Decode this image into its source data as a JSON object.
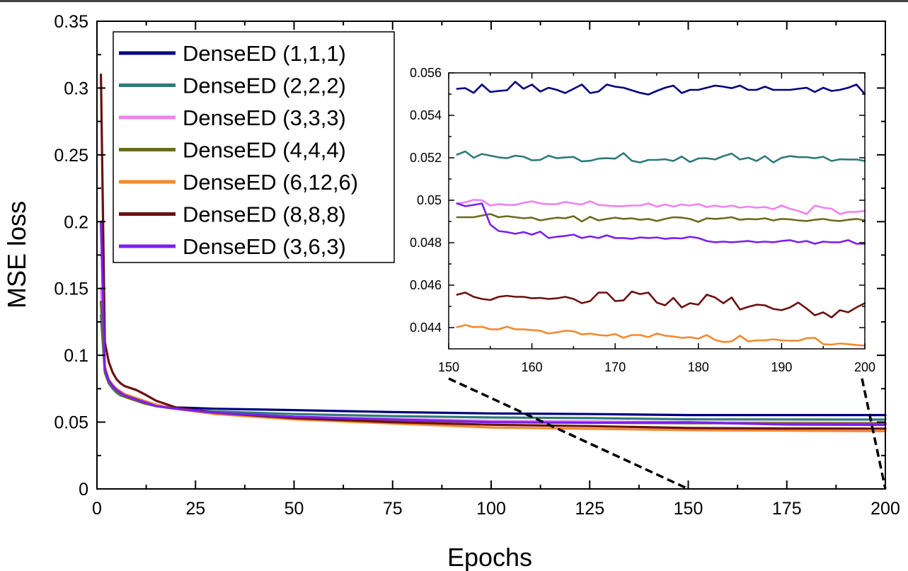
{
  "chart_data": [
    {
      "type": "line",
      "title": "",
      "xlabel": "Epochs",
      "ylabel": "MSE loss",
      "xlim": [
        0,
        200
      ],
      "ylim": [
        0,
        0.35
      ],
      "xticks": [
        0,
        25,
        50,
        75,
        100,
        125,
        150,
        175,
        200
      ],
      "yticks": [
        0,
        0.05,
        0.1,
        0.15,
        0.2,
        0.25,
        0.3,
        0.35
      ],
      "xtick_labels": [
        "0",
        "25",
        "50",
        "75",
        "100",
        "125",
        "150",
        "175",
        "200"
      ],
      "ytick_labels": [
        "0",
        "0.05",
        "0.1",
        "0.15",
        "0.2",
        "0.25",
        "0.3",
        "0.35"
      ],
      "legend_position": "top-left",
      "x": [
        1,
        2,
        3,
        4,
        5,
        6,
        7,
        8,
        10,
        12,
        15,
        20,
        25,
        30,
        40,
        50,
        75,
        100,
        125,
        150,
        175,
        200
      ],
      "series": [
        {
          "name": "DenseED (1,1,1)",
          "color": "#000080",
          "values": [
            0.14,
            0.088,
            0.08,
            0.076,
            0.073,
            0.071,
            0.069,
            0.068,
            0.066,
            0.064,
            0.062,
            0.061,
            0.0605,
            0.06,
            0.0595,
            0.059,
            0.0575,
            0.0565,
            0.056,
            0.0553,
            0.0553,
            0.0553
          ]
        },
        {
          "name": "DenseED (2,2,2)",
          "color": "#2F7A7A",
          "values": [
            0.13,
            0.087,
            0.079,
            0.075,
            0.072,
            0.07,
            0.069,
            0.068,
            0.066,
            0.064,
            0.062,
            0.06,
            0.059,
            0.058,
            0.057,
            0.056,
            0.0545,
            0.0535,
            0.053,
            0.0521,
            0.052,
            0.0519
          ]
        },
        {
          "name": "DenseED (3,3,3)",
          "color": "#EE82EE",
          "values": [
            0.15,
            0.089,
            0.081,
            0.076,
            0.073,
            0.071,
            0.069,
            0.068,
            0.066,
            0.064,
            0.062,
            0.06,
            0.0585,
            0.057,
            0.055,
            0.054,
            0.0525,
            0.051,
            0.0505,
            0.0498,
            0.0496,
            0.0494
          ]
        },
        {
          "name": "DenseED (4,4,4)",
          "color": "#6B6B1E",
          "values": [
            0.14,
            0.088,
            0.08,
            0.076,
            0.073,
            0.071,
            0.069,
            0.068,
            0.066,
            0.064,
            0.062,
            0.06,
            0.0585,
            0.057,
            0.055,
            0.054,
            0.0515,
            0.05,
            0.0495,
            0.0492,
            0.0491,
            0.049
          ]
        },
        {
          "name": "DenseED (6,12,6)",
          "color": "#F28A30",
          "values": [
            0.2,
            0.092,
            0.082,
            0.078,
            0.075,
            0.073,
            0.071,
            0.07,
            0.068,
            0.066,
            0.063,
            0.06,
            0.058,
            0.056,
            0.054,
            0.052,
            0.049,
            0.046,
            0.045,
            0.044,
            0.0436,
            0.0432
          ]
        },
        {
          "name": "DenseED (8,8,8)",
          "color": "#6B1010",
          "values": [
            0.31,
            0.11,
            0.095,
            0.087,
            0.082,
            0.079,
            0.077,
            0.076,
            0.074,
            0.071,
            0.066,
            0.061,
            0.059,
            0.057,
            0.055,
            0.053,
            0.05,
            0.048,
            0.047,
            0.0456,
            0.0452,
            0.0451
          ]
        },
        {
          "name": "DenseED (3,6,3)",
          "color": "#7B1FF2",
          "values": [
            0.2,
            0.09,
            0.081,
            0.077,
            0.074,
            0.072,
            0.07,
            0.069,
            0.067,
            0.065,
            0.062,
            0.06,
            0.0585,
            0.057,
            0.0555,
            0.054,
            0.052,
            0.05,
            0.0495,
            0.0498,
            0.0482,
            0.0479
          ]
        }
      ]
    },
    {
      "type": "line",
      "title": "",
      "xlim": [
        150,
        200
      ],
      "ylim": [
        0.043,
        0.056
      ],
      "xticks": [
        150,
        160,
        170,
        180,
        190,
        200
      ],
      "yticks": [
        0.044,
        0.046,
        0.048,
        0.05,
        0.052,
        0.054,
        0.056
      ],
      "xtick_labels": [
        "150",
        "160",
        "170",
        "180",
        "190",
        "200"
      ],
      "ytick_labels": [
        "0.044",
        "0.046",
        "0.048",
        "0.05",
        "0.052",
        "0.054",
        "0.056"
      ],
      "x": [
        151,
        152,
        153,
        154,
        155,
        156,
        157,
        158,
        159,
        160,
        161,
        162,
        163,
        164,
        165,
        166,
        167,
        168,
        169,
        170,
        171,
        172,
        173,
        174,
        175,
        176,
        177,
        178,
        179,
        180,
        181,
        182,
        183,
        184,
        185,
        186,
        187,
        188,
        189,
        190,
        191,
        192,
        193,
        194,
        195,
        196,
        197,
        198,
        199,
        200
      ],
      "series": [
        {
          "name": "DenseED (1,1,1)",
          "color": "#000080",
          "values": [
            0.05525,
            0.05528,
            0.05506,
            0.05545,
            0.0551,
            0.05515,
            0.05518,
            0.05558,
            0.05525,
            0.05545,
            0.05512,
            0.0553,
            0.0552,
            0.05505,
            0.05525,
            0.05545,
            0.05505,
            0.05512,
            0.05545,
            0.05535,
            0.0553,
            0.05518,
            0.05506,
            0.05498,
            0.05515,
            0.0553,
            0.0554,
            0.05505,
            0.0552,
            0.0552,
            0.0553,
            0.0554,
            0.05535,
            0.05528,
            0.0554,
            0.0552,
            0.0552,
            0.05535,
            0.0552,
            0.0552,
            0.0552,
            0.05525,
            0.0553,
            0.0551,
            0.0553,
            0.05515,
            0.0552,
            0.0553,
            0.05545,
            0.055
          ]
        },
        {
          "name": "DenseED (2,2,2)",
          "color": "#2F7A7A",
          "values": [
            0.05215,
            0.0523,
            0.052,
            0.05218,
            0.0521,
            0.05202,
            0.05198,
            0.0521,
            0.05205,
            0.05188,
            0.0519,
            0.0521,
            0.05198,
            0.05202,
            0.05204,
            0.05183,
            0.05186,
            0.05196,
            0.05198,
            0.05196,
            0.05222,
            0.05186,
            0.05178,
            0.0519,
            0.0519,
            0.05193,
            0.05185,
            0.05206,
            0.0518,
            0.05197,
            0.05198,
            0.05192,
            0.05208,
            0.0522,
            0.05192,
            0.052,
            0.05185,
            0.05208,
            0.05178,
            0.052,
            0.05208,
            0.05203,
            0.05203,
            0.05198,
            0.05205,
            0.05185,
            0.05193,
            0.05192,
            0.05192,
            0.05185
          ]
        },
        {
          "name": "DenseED (3,3,3)",
          "color": "#EE82EE",
          "values": [
            0.04985,
            0.0499,
            0.05002,
            0.05,
            0.04975,
            0.04982,
            0.04978,
            0.04978,
            0.04988,
            0.04995,
            0.04985,
            0.04982,
            0.04982,
            0.04992,
            0.04985,
            0.0498,
            0.04995,
            0.04978,
            0.04975,
            0.04972,
            0.04972,
            0.04975,
            0.04975,
            0.04985,
            0.0497,
            0.0498,
            0.0497,
            0.0498,
            0.04975,
            0.04982,
            0.04968,
            0.04975,
            0.04968,
            0.04975,
            0.04965,
            0.0497,
            0.04965,
            0.04968,
            0.04958,
            0.04975,
            0.0496,
            0.0495,
            0.04935,
            0.04975,
            0.04965,
            0.0496,
            0.04935,
            0.04945,
            0.04945,
            0.0495
          ]
        },
        {
          "name": "DenseED (4,4,4)",
          "color": "#6B6B1E",
          "values": [
            0.0492,
            0.0492,
            0.0492,
            0.04928,
            0.04935,
            0.0492,
            0.04925,
            0.0492,
            0.04915,
            0.04918,
            0.04905,
            0.04912,
            0.04918,
            0.04915,
            0.04925,
            0.049,
            0.04922,
            0.04905,
            0.04912,
            0.04918,
            0.04912,
            0.04915,
            0.04908,
            0.04912,
            0.04902,
            0.04912,
            0.0492,
            0.04918,
            0.04912,
            0.04898,
            0.04915,
            0.04912,
            0.04915,
            0.0492,
            0.04908,
            0.04912,
            0.0491,
            0.04915,
            0.04905,
            0.04912,
            0.0491,
            0.04905,
            0.04902,
            0.04908,
            0.04912,
            0.04905,
            0.04902,
            0.04908,
            0.04912,
            0.04905
          ]
        },
        {
          "name": "DenseED (6,12,6)",
          "color": "#F28A30",
          "values": [
            0.04402,
            0.04412,
            0.04402,
            0.04404,
            0.04392,
            0.04392,
            0.04404,
            0.04392,
            0.04392,
            0.04388,
            0.04385,
            0.04372,
            0.04378,
            0.04385,
            0.04383,
            0.04368,
            0.04372,
            0.04365,
            0.04362,
            0.0437,
            0.04352,
            0.04365,
            0.04365,
            0.04355,
            0.04372,
            0.04362,
            0.04358,
            0.04352,
            0.04355,
            0.04348,
            0.04365,
            0.04342,
            0.04332,
            0.04335,
            0.04362,
            0.04335,
            0.0434,
            0.0434,
            0.04345,
            0.0434,
            0.04338,
            0.04338,
            0.0435,
            0.04352,
            0.04322,
            0.0432,
            0.04325,
            0.04322,
            0.04318,
            0.04315
          ]
        },
        {
          "name": "DenseED (8,8,8)",
          "color": "#6B1010",
          "values": [
            0.04555,
            0.04565,
            0.04545,
            0.04535,
            0.0453,
            0.04545,
            0.0455,
            0.04545,
            0.04545,
            0.04538,
            0.0454,
            0.04535,
            0.04538,
            0.04545,
            0.04535,
            0.04515,
            0.04525,
            0.04565,
            0.04565,
            0.04525,
            0.04528,
            0.0457,
            0.04558,
            0.04565,
            0.04518,
            0.04505,
            0.0454,
            0.04495,
            0.04515,
            0.04508,
            0.04555,
            0.04542,
            0.04515,
            0.04542,
            0.04485,
            0.04498,
            0.04508,
            0.04505,
            0.04488,
            0.04482,
            0.04495,
            0.04518,
            0.0449,
            0.04458,
            0.04472,
            0.04448,
            0.04482,
            0.04472,
            0.04495,
            0.04515
          ]
        },
        {
          "name": "DenseED (3,6,3)",
          "color": "#7B1FF2",
          "values": [
            0.04985,
            0.04972,
            0.04978,
            0.04985,
            0.04885,
            0.04855,
            0.0485,
            0.04842,
            0.0485,
            0.04838,
            0.04852,
            0.04822,
            0.04828,
            0.04832,
            0.04838,
            0.04822,
            0.0483,
            0.04822,
            0.04835,
            0.04822,
            0.04822,
            0.04818,
            0.04825,
            0.04822,
            0.04825,
            0.04818,
            0.04822,
            0.0482,
            0.04828,
            0.04822,
            0.04808,
            0.04802,
            0.04805,
            0.04802,
            0.04805,
            0.04808,
            0.04802,
            0.04805,
            0.04802,
            0.04808,
            0.04812,
            0.04802,
            0.04808,
            0.04795,
            0.04805,
            0.04802,
            0.04802,
            0.04812,
            0.04795,
            0.04795
          ]
        }
      ]
    }
  ]
}
